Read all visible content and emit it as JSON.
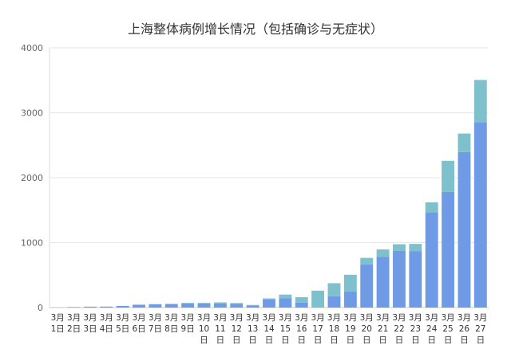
{
  "chart_data": {
    "type": "bar",
    "stacked": true,
    "title": "上海整体病例增长情况（包括确诊与无症状）",
    "xlabel": "",
    "ylabel": "",
    "ylim": [
      0,
      4000
    ],
    "yticks": [
      0,
      1000,
      2000,
      3000,
      4000
    ],
    "grid": true,
    "legend": "none",
    "categories": [
      "3月1日",
      "3月2日",
      "3月3日",
      "3月4日",
      "3月5日",
      "3月6日",
      "3月7日",
      "3月8日",
      "3月9日",
      "3月10日",
      "3月11日",
      "3月12日",
      "3月13日",
      "3月14日",
      "3月15日",
      "3月16日",
      "3月17日",
      "3月18日",
      "3月19日",
      "3月20日",
      "3月21日",
      "3月22日",
      "3月23日",
      "3月24日",
      "3月25日",
      "3月26日",
      "3月27日"
    ],
    "colors": {
      "bottom": "#6f9be6",
      "top": "#7ec0cb"
    },
    "series": [
      {
        "values": [
          2,
          8,
          14,
          15,
          26,
          44,
          52,
          56,
          62,
          62,
          64,
          58,
          30,
          125,
          145,
          75,
          0,
          175,
          245,
          665,
          780,
          875,
          870,
          1465,
          1780,
          2395,
          2855
        ]
      },
      {
        "values": [
          0,
          0,
          0,
          0,
          0,
          0,
          0,
          0,
          10,
          10,
          16,
          12,
          10,
          16,
          55,
          85,
          260,
          200,
          260,
          100,
          115,
          100,
          110,
          155,
          480,
          285,
          650
        ]
      }
    ]
  }
}
